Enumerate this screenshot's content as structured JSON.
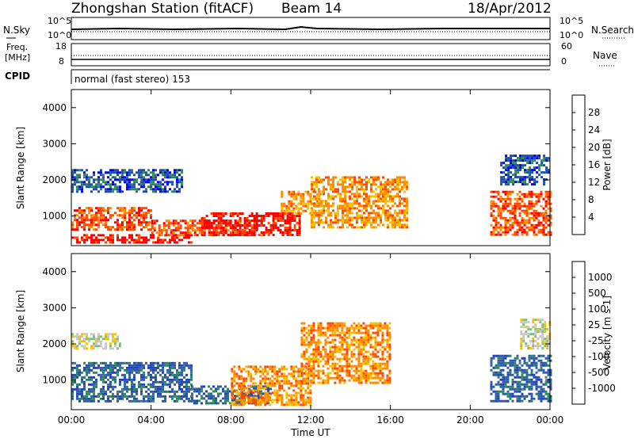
{
  "header": {
    "station_title": "Zhongshan Station (fitACF)",
    "beam_label": "Beam 14",
    "date": "18/Apr/2012"
  },
  "status_panels": {
    "nsky_label": "N.Sky",
    "nsearch_label": "N.Search",
    "nsky_ticks": [
      "10^5",
      "10^0"
    ],
    "nsearch_ticks": [
      "10^5",
      "10^0"
    ],
    "freq_label": "Freq.",
    "freq_unit": "[MHz]",
    "freq_ticks": [
      "18",
      "8"
    ],
    "nave_label": "Nave",
    "nave_ticks": [
      "60",
      "0"
    ],
    "cpid_label": "CPID",
    "cpid_value": "normal (fast stereo) 153"
  },
  "chart_data": [
    {
      "type": "heatmap",
      "panel": "power",
      "ylabel": "Slant Range [km]",
      "ylim": [
        180,
        4500
      ],
      "yticks": [
        "1000",
        "2000",
        "3000",
        "4000"
      ],
      "xlim": [
        0,
        24
      ],
      "colorbar_label": "Power [dB]",
      "colorbar_ticks": [
        "28",
        "24",
        "20",
        "16",
        "12",
        "8",
        "4"
      ],
      "colorbar_colors": [
        "#ff0000",
        "#ff4a00",
        "#ff8c00",
        "#f2c300",
        "#77b35a",
        "#2e8b57",
        "#1f4fa8",
        "#0000ff"
      ],
      "bands": [
        {
          "t0": 0.0,
          "t1": 6.0,
          "r0": 300,
          "r1": 500,
          "level": 0
        },
        {
          "t0": 0.0,
          "t1": 4.0,
          "r0": 650,
          "r1": 1250,
          "level": 1
        },
        {
          "t0": 4.0,
          "t1": 9.5,
          "r0": 500,
          "r1": 900,
          "level": 1
        },
        {
          "t0": 6.5,
          "t1": 11.5,
          "r0": 450,
          "r1": 1100,
          "level": 0
        },
        {
          "t0": 10.5,
          "t1": 12.5,
          "r0": 1100,
          "r1": 1700,
          "level": 2
        },
        {
          "t0": 12.0,
          "t1": 16.8,
          "r0": 700,
          "r1": 2100,
          "level": 2
        },
        {
          "t0": 0.0,
          "t1": 5.5,
          "r0": 1700,
          "r1": 2300,
          "level": 6
        },
        {
          "t0": 21.0,
          "t1": 24.0,
          "r0": 500,
          "r1": 1700,
          "level": 1
        },
        {
          "t0": 21.5,
          "t1": 24.0,
          "r0": 1900,
          "r1": 2700,
          "level": 6
        }
      ]
    },
    {
      "type": "heatmap",
      "panel": "velocity",
      "ylabel": "Slant Range [km]",
      "ylim": [
        180,
        4500
      ],
      "yticks": [
        "1000",
        "2000",
        "3000",
        "4000"
      ],
      "xlim": [
        0,
        24
      ],
      "xticks": [
        "00:00",
        "04:00",
        "08:00",
        "12:00",
        "16:00",
        "20:00",
        "00:00"
      ],
      "xlabel": "Time UT",
      "colorbar_label": "Velocity [m s-1]",
      "colorbar_ticks": [
        "1000",
        "500",
        "100",
        "25",
        "-25",
        "-100",
        "-500",
        "-1000"
      ],
      "colorbar_colors": [
        "#2244bb",
        "#2f5fa8",
        "#2e8b57",
        "#7fbf7f",
        "#c8c8c8",
        "#f2c300",
        "#ff8c00",
        "#ff4a00",
        "#ff0000"
      ],
      "bands": [
        {
          "t0": 0.0,
          "t1": 6.0,
          "r0": 400,
          "r1": 1500,
          "level": 1
        },
        {
          "t0": 0.0,
          "t1": 2.5,
          "r0": 1900,
          "r1": 2300,
          "level": 4
        },
        {
          "t0": 6.0,
          "t1": 10.0,
          "r0": 350,
          "r1": 850,
          "level": 1
        },
        {
          "t0": 8.0,
          "t1": 12.0,
          "r0": 300,
          "r1": 1400,
          "level": 6
        },
        {
          "t0": 11.5,
          "t1": 16.0,
          "r0": 900,
          "r1": 2600,
          "level": 6
        },
        {
          "t0": 21.0,
          "t1": 24.0,
          "r0": 400,
          "r1": 1700,
          "level": 1
        },
        {
          "t0": 22.5,
          "t1": 24.0,
          "r0": 1900,
          "r1": 2700,
          "level": 4
        }
      ]
    }
  ]
}
